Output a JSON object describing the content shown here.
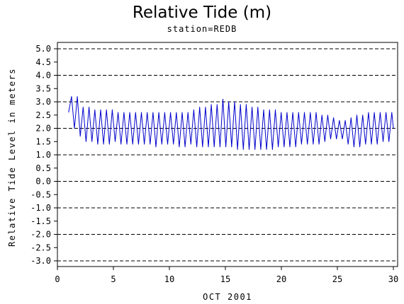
{
  "title": "Relative Tide (m)",
  "subtitle": "station=REDB",
  "colors": {
    "line": "#0000cc",
    "axis": "#000000",
    "grid": "#000000"
  },
  "chart_data": {
    "type": "line",
    "title": "Relative Tide (m)",
    "subtitle": "station=REDB",
    "xlabel": "OCT 2001",
    "ylabel": "Relative Tide Level in meters",
    "xlim": [
      0,
      30
    ],
    "ylim": [
      -3.0,
      5.0
    ],
    "x_ticks": [
      0,
      5,
      10,
      15,
      20,
      25,
      30
    ],
    "x_tick_labels": [
      "0",
      "5",
      "10",
      "15",
      "20",
      "25",
      "30"
    ],
    "y_ticks": [
      5.0,
      4.5,
      4.0,
      3.5,
      3.0,
      2.5,
      2.0,
      1.5,
      1.0,
      0.5,
      0.0,
      -0.5,
      -1.0,
      -1.5,
      -2.0,
      -2.5,
      -3.0
    ],
    "y_tick_labels": [
      "5.0",
      "4.5",
      "4.0",
      "3.5",
      "3.0",
      "2.5",
      "2.0",
      "1.5",
      "1.0",
      "0.5",
      "0.0",
      "-0.5",
      "-1.0",
      "-1.5",
      "-2.0",
      "-2.5",
      "-3.0"
    ],
    "grid": "dashed horizontal lines at every 1.0 m",
    "series": [
      {
        "x": [
          1.0,
          1.26,
          1.52,
          1.78,
          2.04,
          2.3,
          2.56,
          2.82,
          3.08,
          3.34,
          3.6,
          3.86,
          4.12,
          4.38,
          4.64,
          4.9,
          5.16,
          5.42,
          5.68,
          5.94,
          6.2,
          6.46,
          6.72,
          6.98,
          7.24,
          7.5,
          7.76,
          8.02,
          8.28,
          8.54,
          8.8,
          9.06,
          9.32,
          9.58,
          9.84,
          10.1,
          10.36,
          10.62,
          10.88,
          11.14,
          11.4,
          11.66,
          11.92,
          12.18,
          12.44,
          12.7,
          12.96,
          13.22,
          13.48,
          13.74,
          14.0,
          14.26,
          14.52,
          14.78,
          15.04,
          15.3,
          15.56,
          15.82,
          16.08,
          16.34,
          16.6,
          16.86,
          17.12,
          17.38,
          17.64,
          17.9,
          18.16,
          18.42,
          18.68,
          18.94,
          19.2,
          19.46,
          19.72,
          19.98,
          20.24,
          20.5,
          20.76,
          21.02,
          21.28,
          21.54,
          21.8,
          22.06,
          22.32,
          22.58,
          22.84,
          23.1,
          23.36,
          23.62,
          23.88,
          24.14,
          24.4,
          24.66,
          24.92,
          25.18,
          25.44,
          25.7,
          25.96,
          26.22,
          26.48,
          26.74,
          27.0,
          27.26,
          27.52,
          27.78,
          28.04,
          28.3,
          28.56,
          28.82,
          29.08,
          29.34,
          29.6,
          29.86,
          30.0
        ],
        "y": [
          2.6,
          3.2,
          2.0,
          3.2,
          1.7,
          2.8,
          1.5,
          2.8,
          1.5,
          2.7,
          1.4,
          2.7,
          1.4,
          2.7,
          1.4,
          2.7,
          1.5,
          2.6,
          1.4,
          2.6,
          1.4,
          2.6,
          1.4,
          2.6,
          1.4,
          2.6,
          1.4,
          2.6,
          1.4,
          2.6,
          1.3,
          2.6,
          1.4,
          2.6,
          1.4,
          2.6,
          1.4,
          2.6,
          1.3,
          2.6,
          1.3,
          2.6,
          1.4,
          2.7,
          1.3,
          2.8,
          1.3,
          2.8,
          1.3,
          2.9,
          1.3,
          2.9,
          1.3,
          3.1,
          1.3,
          3.0,
          1.3,
          3.0,
          1.2,
          2.9,
          1.2,
          2.9,
          1.2,
          2.8,
          1.2,
          2.8,
          1.2,
          2.7,
          1.2,
          2.7,
          1.2,
          2.7,
          1.3,
          2.6,
          1.3,
          2.6,
          1.3,
          2.6,
          1.3,
          2.6,
          1.4,
          2.6,
          1.4,
          2.6,
          1.4,
          2.6,
          1.4,
          2.5,
          1.5,
          2.5,
          1.6,
          2.4,
          1.6,
          2.3,
          1.6,
          2.3,
          1.4,
          2.4,
          1.3,
          2.5,
          1.3,
          2.5,
          1.4,
          2.6,
          1.4,
          2.6,
          1.4,
          2.6,
          1.5,
          2.6,
          1.5,
          2.6,
          2.0
        ]
      }
    ]
  }
}
